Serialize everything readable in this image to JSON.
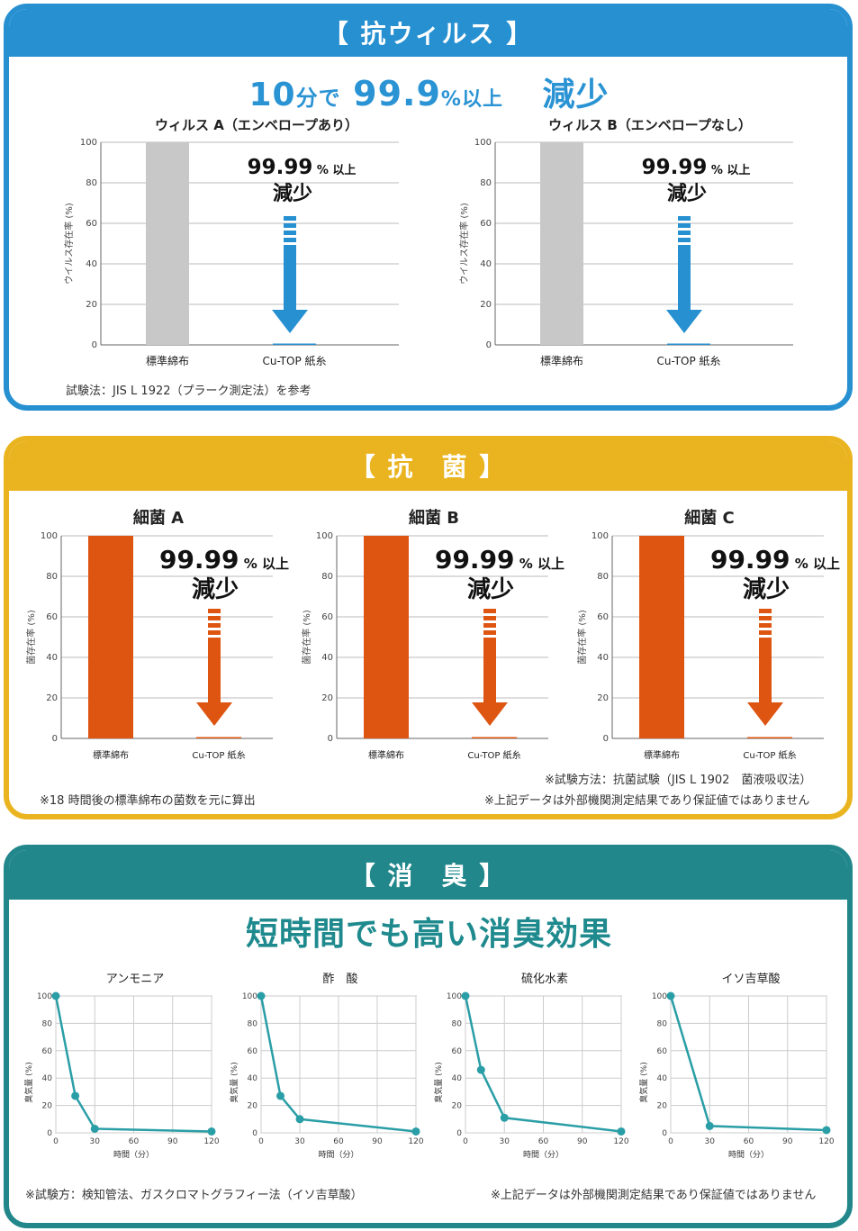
{
  "colors": {
    "virus_accent": "#2790d0",
    "bacteria_accent": "#eab420",
    "deodor_accent": "#21878b",
    "standard_bar_virus": "#c8c8c8",
    "standard_bar_bacteria": "#de5512",
    "line_color": "#2a9ea6"
  },
  "virus": {
    "header": "【 抗ウィルス 】",
    "headline": {
      "part1": "10",
      "part2": "分で",
      "part3": "99.9",
      "part4": "%以上",
      "part5": "減少"
    },
    "note": "試験法：JIS L 1922（プラーク測定法）を参考"
  },
  "bacteria": {
    "header": "【 抗　菌 】",
    "note_left": "※18 時間後の標準綿布の菌数を元に算出",
    "note_right1": "※試験方法：抗菌試験（JIS L 1902　菌液吸収法）",
    "note_right2": "※上記データは外部機関測定結果であり保証値ではありません"
  },
  "deodor": {
    "header": "【 消　臭 】",
    "headline": "短時間でも高い消臭効果",
    "note_left": "※試験方：検知管法、ガスクロマトグラフィー法（イソ吉草酸）",
    "note_right": "※上記データは外部機関測定結果であり保証値ではありません"
  },
  "chart_data": [
    {
      "type": "bar",
      "title": "ウィルス A（エンベロープあり）",
      "ylabel": "ウイルス存在率 (%)",
      "ylim": [
        0,
        100
      ],
      "yticks": [
        "0",
        "20",
        "40",
        "60",
        "80",
        "100"
      ],
      "categories": [
        "標準綿布",
        "Cu-TOP 紙糸"
      ],
      "values": [
        100,
        0.01
      ],
      "annotation": {
        "big": "99.99",
        "small": "% 以上",
        "line2": "減少"
      }
    },
    {
      "type": "bar",
      "title": "ウィルス B（エンベロープなし）",
      "ylabel": "ウイルス存在率 (%)",
      "ylim": [
        0,
        100
      ],
      "yticks": [
        "0",
        "20",
        "40",
        "60",
        "80",
        "100"
      ],
      "categories": [
        "標準綿布",
        "Cu-TOP 紙糸"
      ],
      "values": [
        100,
        0.01
      ],
      "annotation": {
        "big": "99.99",
        "small": "% 以上",
        "line2": "減少"
      }
    },
    {
      "type": "bar",
      "title": "細菌 A",
      "ylabel": "菌存在率 (%)",
      "ylim": [
        0,
        100
      ],
      "yticks": [
        "0",
        "20",
        "40",
        "60",
        "80",
        "100"
      ],
      "categories": [
        "標準綿布",
        "Cu-TOP 紙糸"
      ],
      "values": [
        100,
        0.01
      ],
      "annotation": {
        "big": "99.99",
        "small": "% 以上",
        "line2": "減少"
      }
    },
    {
      "type": "bar",
      "title": "細菌 B",
      "ylabel": "菌存在率 (%)",
      "ylim": [
        0,
        100
      ],
      "yticks": [
        "0",
        "20",
        "40",
        "60",
        "80",
        "100"
      ],
      "categories": [
        "標準綿布",
        "Cu-TOP 紙糸"
      ],
      "values": [
        100,
        0.01
      ],
      "annotation": {
        "big": "99.99",
        "small": "% 以上",
        "line2": "減少"
      }
    },
    {
      "type": "bar",
      "title": "細菌 C",
      "ylabel": "菌存在率 (%)",
      "ylim": [
        0,
        100
      ],
      "yticks": [
        "0",
        "20",
        "40",
        "60",
        "80",
        "100"
      ],
      "categories": [
        "標準綿布",
        "Cu-TOP 紙糸"
      ],
      "values": [
        100,
        0.01
      ],
      "annotation": {
        "big": "99.99",
        "small": "% 以上",
        "line2": "減少"
      }
    },
    {
      "type": "line",
      "title": "アンモニア",
      "xlabel": "時間（分）",
      "ylabel": "臭気量 (%)",
      "xlim": [
        0,
        120
      ],
      "ylim": [
        0,
        100
      ],
      "xticks": [
        "0",
        "30",
        "60",
        "90",
        "120"
      ],
      "yticks": [
        "0",
        "20",
        "40",
        "60",
        "80",
        "100"
      ],
      "x": [
        0,
        15,
        30,
        120
      ],
      "y": [
        100,
        27,
        3,
        1
      ]
    },
    {
      "type": "line",
      "title": "酢　酸",
      "xlabel": "時間（分）",
      "ylabel": "臭気量 (%)",
      "xlim": [
        0,
        120
      ],
      "ylim": [
        0,
        100
      ],
      "xticks": [
        "0",
        "30",
        "60",
        "90",
        "120"
      ],
      "yticks": [
        "0",
        "20",
        "40",
        "60",
        "80",
        "100"
      ],
      "x": [
        0,
        15,
        30,
        120
      ],
      "y": [
        100,
        27,
        10,
        1
      ]
    },
    {
      "type": "line",
      "title": "硫化水素",
      "xlabel": "時間（分）",
      "ylabel": "臭気量 (%)",
      "xlim": [
        0,
        120
      ],
      "ylim": [
        0,
        100
      ],
      "xticks": [
        "0",
        "30",
        "60",
        "90",
        "120"
      ],
      "yticks": [
        "0",
        "20",
        "40",
        "60",
        "80",
        "100"
      ],
      "x": [
        0,
        12,
        30,
        120
      ],
      "y": [
        100,
        46,
        11,
        1
      ]
    },
    {
      "type": "line",
      "title": "イソ吉草酸",
      "xlabel": "時間（分）",
      "ylabel": "臭気量 (%)",
      "xlim": [
        0,
        120
      ],
      "ylim": [
        0,
        100
      ],
      "xticks": [
        "0",
        "30",
        "60",
        "90",
        "120"
      ],
      "yticks": [
        "0",
        "20",
        "40",
        "60",
        "80",
        "100"
      ],
      "x": [
        0,
        30,
        120
      ],
      "y": [
        100,
        5,
        2
      ]
    }
  ]
}
